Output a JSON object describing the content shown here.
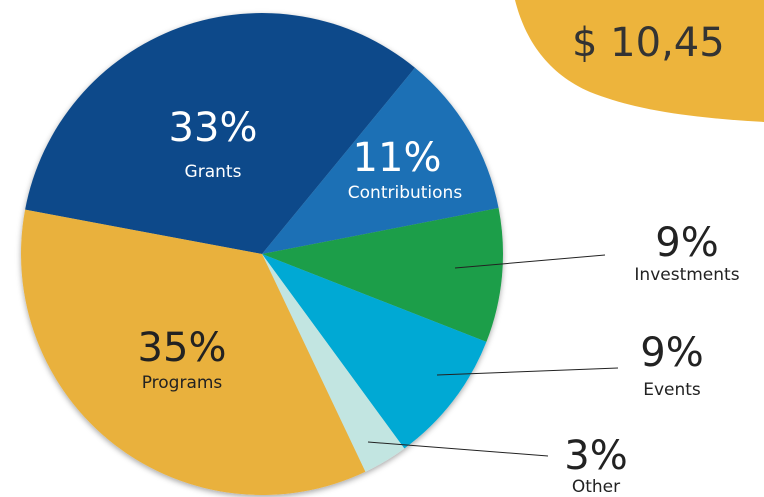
{
  "chart_data": {
    "type": "pie",
    "annotation": "$ 10,45",
    "categories": [
      "Grants",
      "Contributions",
      "Investments",
      "Events",
      "Other",
      "Programs"
    ],
    "values": [
      33,
      11,
      9,
      9,
      3,
      35
    ],
    "value_labels": [
      "33%",
      "11%",
      "9%",
      "9%",
      "3%",
      "35%"
    ],
    "colors": [
      "#0d4a8a",
      "#1a6fb5",
      "#1e9e48",
      "#00a9d4",
      "#c2e5e1",
      "#e9b13c"
    ],
    "annotation_color": "#edb43c"
  }
}
